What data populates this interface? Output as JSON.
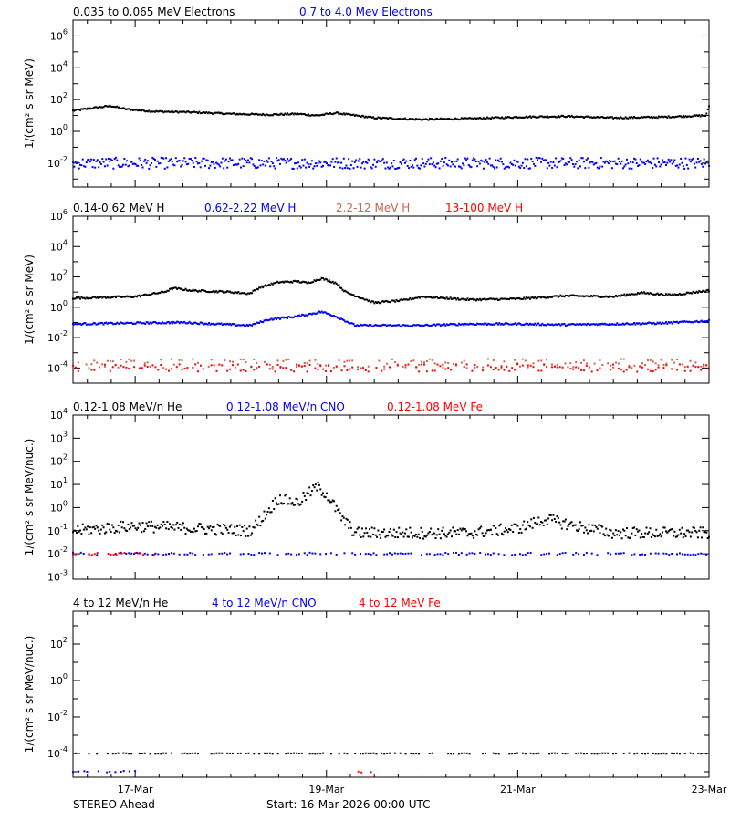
{
  "footer": {
    "left": "STEREO Ahead",
    "start": "Start: 16-Mar-2026 00:00 UTC"
  },
  "x_axis": {
    "tick_labels": [
      "17-Mar",
      "19-Mar",
      "21-Mar",
      "23-Mar"
    ],
    "tick_days": [
      1,
      3,
      5,
      7
    ],
    "range_days": [
      0.35,
      7.0
    ],
    "minor_step_days": 0.25
  },
  "chart_data": [
    {
      "type": "scatter",
      "panel": "electrons",
      "ylabel": "1/(cm² s sr MeV)",
      "yscale": "log",
      "ylim_exp": [
        -3.5,
        7
      ],
      "y_tick_exponents": [
        -2,
        0,
        2,
        4,
        6
      ],
      "legend": [
        {
          "name": "0.035 to 0.065 MeV Electrons",
          "color": "#000000"
        },
        {
          "name": "0.7 to 4.0 Mev Electrons",
          "color": "#0000ff"
        }
      ],
      "series": [
        {
          "name": "0.035 to 0.065 MeV Electrons",
          "color": "#000000",
          "noise": 0.05,
          "dense": true,
          "profile": [
            [
              0.35,
              1.3
            ],
            [
              0.6,
              1.5
            ],
            [
              0.75,
              1.6
            ],
            [
              0.9,
              1.4
            ],
            [
              1.2,
              1.25
            ],
            [
              1.6,
              1.2
            ],
            [
              2.0,
              1.1
            ],
            [
              2.4,
              1.05
            ],
            [
              2.7,
              1.1
            ],
            [
              2.9,
              1.0
            ],
            [
              3.1,
              1.15
            ],
            [
              3.3,
              1.0
            ],
            [
              3.5,
              0.85
            ],
            [
              4.0,
              0.75
            ],
            [
              4.5,
              0.8
            ],
            [
              5.0,
              0.9
            ],
            [
              5.5,
              0.95
            ],
            [
              6.0,
              0.85
            ],
            [
              6.5,
              0.9
            ],
            [
              6.97,
              1.0
            ],
            [
              7.0,
              1.6
            ]
          ]
        },
        {
          "name": "0.7 to 4.0 Mev Electrons",
          "color": "#0000ff",
          "noise": 0.35,
          "dense": true,
          "profile": [
            [
              0.35,
              -2.0
            ],
            [
              7.0,
              -2.0
            ]
          ]
        }
      ]
    },
    {
      "type": "scatter",
      "panel": "protons",
      "ylabel": "1/(cm² s sr MeV)",
      "yscale": "log",
      "ylim_exp": [
        -5,
        6
      ],
      "y_tick_exponents": [
        -4,
        -2,
        0,
        2,
        4,
        6
      ],
      "legend": [
        {
          "name": "0.14-0.62 MeV H",
          "color": "#000000"
        },
        {
          "name": "0.62-2.22 MeV H",
          "color": "#0000ff"
        },
        {
          "name": "2.2-12 MeV H",
          "color": "#c86450"
        },
        {
          "name": "13-100 MeV H",
          "color": "#ff0000"
        }
      ],
      "series": [
        {
          "name": "0.14-0.62 MeV H",
          "color": "#000000",
          "noise": 0.06,
          "dense": true,
          "profile": [
            [
              0.35,
              0.6
            ],
            [
              1.0,
              0.7
            ],
            [
              1.3,
              1.0
            ],
            [
              1.4,
              1.25
            ],
            [
              1.6,
              1.1
            ],
            [
              2.0,
              1.0
            ],
            [
              2.2,
              0.9
            ],
            [
              2.3,
              1.3
            ],
            [
              2.5,
              1.65
            ],
            [
              2.7,
              1.7
            ],
            [
              2.8,
              1.6
            ],
            [
              2.95,
              1.9
            ],
            [
              3.1,
              1.6
            ],
            [
              3.2,
              1.0
            ],
            [
              3.5,
              0.3
            ],
            [
              3.8,
              0.45
            ],
            [
              4.0,
              0.7
            ],
            [
              4.5,
              0.5
            ],
            [
              5.0,
              0.55
            ],
            [
              5.5,
              0.75
            ],
            [
              6.0,
              0.7
            ],
            [
              6.3,
              0.95
            ],
            [
              6.6,
              0.8
            ],
            [
              7.0,
              1.1
            ]
          ]
        },
        {
          "name": "0.62-2.22 MeV H",
          "color": "#0000ff",
          "noise": 0.06,
          "dense": true,
          "profile": [
            [
              0.35,
              -1.1
            ],
            [
              1.5,
              -1.0
            ],
            [
              2.2,
              -1.2
            ],
            [
              2.4,
              -0.8
            ],
            [
              2.7,
              -0.6
            ],
            [
              2.95,
              -0.3
            ],
            [
              3.1,
              -0.6
            ],
            [
              3.3,
              -1.2
            ],
            [
              4.0,
              -1.2
            ],
            [
              4.5,
              -1.1
            ],
            [
              5.0,
              -1.1
            ],
            [
              5.5,
              -1.15
            ],
            [
              6.0,
              -1.1
            ],
            [
              6.5,
              -1.05
            ],
            [
              7.0,
              -0.9
            ]
          ]
        },
        {
          "name": "2.2-12 MeV H",
          "color": "#c86450",
          "noise": 0.3,
          "dense": false,
          "profile": [
            [
              0.35,
              -3.7
            ],
            [
              7.0,
              -3.7
            ]
          ]
        },
        {
          "name": "13-100 MeV H",
          "color": "#ff0000",
          "noise": 0.25,
          "dense": false,
          "profile": [
            [
              0.35,
              -4.0
            ],
            [
              7.0,
              -4.0
            ]
          ]
        }
      ]
    },
    {
      "type": "scatter",
      "panel": "heavy-ions-low",
      "ylabel": "1/(cm² s sr MeV/nuc.)",
      "yscale": "log",
      "ylim_exp": [
        -3.1,
        4
      ],
      "y_tick_exponents": [
        -3,
        -2,
        -1,
        0,
        1,
        2,
        3,
        4
      ],
      "legend": [
        {
          "name": "0.12-1.08 MeV/n He",
          "color": "#000000"
        },
        {
          "name": "0.12-1.08 MeV/n CNO",
          "color": "#0000ff"
        },
        {
          "name": "0.12-1.08 MeV Fe",
          "color": "#ff0000"
        }
      ],
      "series": [
        {
          "name": "0.12-1.08 MeV/n He",
          "color": "#000000",
          "noise": 0.25,
          "dense": true,
          "profile": [
            [
              0.35,
              -1.0
            ],
            [
              1.0,
              -0.8
            ],
            [
              2.2,
              -1.0
            ],
            [
              2.3,
              -0.6
            ],
            [
              2.5,
              0.4
            ],
            [
              2.7,
              0.2
            ],
            [
              2.9,
              0.9
            ],
            [
              3.0,
              0.6
            ],
            [
              3.15,
              -0.4
            ],
            [
              3.3,
              -1.1
            ],
            [
              4.5,
              -1.1
            ],
            [
              5.0,
              -0.9
            ],
            [
              5.3,
              -0.5
            ],
            [
              5.6,
              -0.8
            ],
            [
              6.0,
              -1.1
            ],
            [
              7.0,
              -1.1
            ]
          ]
        },
        {
          "name": "0.12-1.08 MeV/n CNO",
          "color": "#0000ff",
          "noise": 0.05,
          "dense": false,
          "profile": [
            [
              0.35,
              -2.0
            ],
            [
              7.0,
              -2.0
            ]
          ]
        },
        {
          "name": "0.12-1.08 MeV Fe",
          "color": "#ff0000",
          "noise": 0.05,
          "dense": false,
          "profile": [
            [
              0.35,
              -2.0
            ],
            [
              1.2,
              -2.0
            ]
          ]
        }
      ]
    },
    {
      "type": "scatter",
      "panel": "heavy-ions-high",
      "ylabel": "1/(cm² s sr MeV/nuc.)",
      "yscale": "log",
      "ylim_exp": [
        -5.3,
        3.8
      ],
      "y_tick_exponents": [
        -4,
        -2,
        0,
        2
      ],
      "legend": [
        {
          "name": "4 to 12 MeV/n He",
          "color": "#000000"
        },
        {
          "name": "4 to 12 MeV/n CNO",
          "color": "#0000ff"
        },
        {
          "name": "4 to 12 MeV Fe",
          "color": "#ff0000"
        }
      ],
      "series": [
        {
          "name": "4 to 12 MeV/n He",
          "color": "#000000",
          "noise": 0.02,
          "dense": false,
          "profile": [
            [
              0.35,
              -4.0
            ],
            [
              7.0,
              -4.0
            ]
          ]
        },
        {
          "name": "4 to 12 MeV/n CNO",
          "color": "#0000ff",
          "noise": 0.05,
          "dense": false,
          "profile": [
            [
              0.35,
              -5.0
            ],
            [
              1.0,
              -5.0
            ]
          ]
        },
        {
          "name": "4 to 12 MeV Fe",
          "color": "#ff0000",
          "noise": 0.05,
          "dense": false,
          "profile": [
            [
              3.3,
              -5.0
            ],
            [
              3.5,
              -5.0
            ]
          ]
        }
      ]
    }
  ]
}
